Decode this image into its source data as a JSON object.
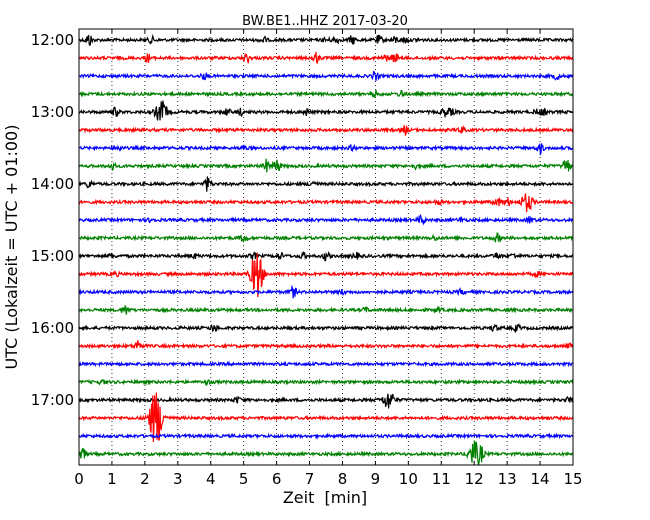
{
  "chart_data": {
    "type": "line",
    "title": "BW.BE1..HHZ 2017-03-20",
    "xlabel": "Zeit  [min]",
    "ylabel": "UTC (Lokalzeit = UTC + 01:00)",
    "xlim": [
      0,
      15
    ],
    "x_ticks": [
      0,
      1,
      2,
      3,
      4,
      5,
      6,
      7,
      8,
      9,
      10,
      11,
      12,
      13,
      14,
      15
    ],
    "y_tick_labels": [
      "12:00",
      "13:00",
      "14:00",
      "15:00",
      "16:00",
      "17:00"
    ],
    "y_tick_rows": [
      0,
      4,
      8,
      12,
      16,
      20
    ],
    "grid": "x-dotted",
    "row_colors": [
      "#000000",
      "#ff0000",
      "#0000ff",
      "#008000"
    ],
    "traces": [
      {
        "time": "12:00",
        "events": [
          [
            0.3,
            6
          ],
          [
            2.2,
            3
          ],
          [
            5.6,
            3
          ],
          [
            7.5,
            2
          ],
          [
            7.8,
            3
          ],
          [
            8.3,
            4
          ],
          [
            9.1,
            4
          ],
          [
            9.6,
            3
          ],
          [
            9.9,
            3
          ],
          [
            10.3,
            2
          ]
        ]
      },
      {
        "time": "12:15",
        "events": [
          [
            2.1,
            4
          ],
          [
            5.1,
            5
          ],
          [
            7.2,
            5
          ],
          [
            9.3,
            3
          ],
          [
            9.6,
            4
          ]
        ]
      },
      {
        "time": "12:30",
        "events": [
          [
            3.8,
            3
          ],
          [
            9.0,
            4
          ],
          [
            14.5,
            3
          ]
        ]
      },
      {
        "time": "12:45",
        "events": [
          [
            9.0,
            3
          ],
          [
            9.8,
            3
          ]
        ]
      },
      {
        "time": "13:00",
        "events": [
          [
            1.1,
            4
          ],
          [
            2.5,
            11
          ],
          [
            4.5,
            3
          ],
          [
            4.9,
            3
          ],
          [
            6.9,
            3
          ],
          [
            11.1,
            4
          ],
          [
            11.3,
            3
          ],
          [
            13.9,
            2
          ],
          [
            14.1,
            3
          ]
        ]
      },
      {
        "time": "13:15",
        "events": [
          [
            9.9,
            4
          ],
          [
            11.6,
            3
          ]
        ]
      },
      {
        "time": "13:30",
        "events": [
          [
            1.2,
            2
          ],
          [
            5.0,
            2
          ],
          [
            8.3,
            2
          ],
          [
            14.0,
            5
          ]
        ]
      },
      {
        "time": "13:45",
        "events": [
          [
            1.0,
            3
          ],
          [
            5.7,
            6
          ],
          [
            6.0,
            7
          ],
          [
            10.2,
            2
          ],
          [
            14.8,
            8
          ]
        ]
      },
      {
        "time": "14:00",
        "events": [
          [
            0.3,
            3
          ],
          [
            3.9,
            7
          ],
          [
            7.1,
            3
          ]
        ]
      },
      {
        "time": "14:15",
        "events": [
          [
            10.9,
            2
          ],
          [
            12.7,
            4
          ],
          [
            13.0,
            4
          ],
          [
            13.6,
            9
          ]
        ]
      },
      {
        "time": "14:30",
        "events": [
          [
            2.2,
            2
          ],
          [
            10.4,
            4
          ],
          [
            11.6,
            2
          ],
          [
            13.7,
            3
          ]
        ]
      },
      {
        "time": "14:45",
        "events": [
          [
            5.0,
            4
          ],
          [
            10.8,
            2
          ],
          [
            12.7,
            4
          ]
        ]
      },
      {
        "time": "15:00",
        "events": [
          [
            1.0,
            2
          ],
          [
            3.5,
            2
          ],
          [
            5.3,
            3
          ],
          [
            6.1,
            3
          ],
          [
            6.8,
            3
          ],
          [
            7.5,
            4
          ],
          [
            8.4,
            3
          ],
          [
            12.7,
            3
          ],
          [
            13.2,
            2
          ]
        ]
      },
      {
        "time": "15:15",
        "events": [
          [
            1.1,
            2
          ],
          [
            5.4,
            24
          ],
          [
            13.9,
            2
          ]
        ]
      },
      {
        "time": "15:30",
        "events": [
          [
            6.5,
            5
          ],
          [
            8.0,
            2
          ],
          [
            11.6,
            2
          ]
        ]
      },
      {
        "time": "15:45",
        "events": [
          [
            1.4,
            5
          ],
          [
            8.7,
            2
          ],
          [
            10.9,
            2
          ]
        ]
      },
      {
        "time": "16:00",
        "events": [
          [
            4.1,
            3
          ],
          [
            12.6,
            3
          ],
          [
            13.3,
            3
          ]
        ]
      },
      {
        "time": "16:15",
        "events": [
          [
            1.8,
            6
          ],
          [
            14.9,
            2
          ]
        ]
      },
      {
        "time": "16:30",
        "events": []
      },
      {
        "time": "16:45",
        "events": [
          [
            0.7,
            2
          ],
          [
            3.9,
            2
          ]
        ]
      },
      {
        "time": "17:00",
        "events": [
          [
            4.8,
            3
          ],
          [
            9.4,
            9
          ],
          [
            14.9,
            3
          ]
        ]
      },
      {
        "time": "17:15",
        "events": [
          [
            2.3,
            20
          ],
          [
            2.4,
            12
          ]
        ]
      },
      {
        "time": "17:30",
        "events": []
      },
      {
        "time": "17:45",
        "events": [
          [
            0.1,
            6
          ],
          [
            12.0,
            12
          ],
          [
            12.2,
            6
          ]
        ]
      }
    ]
  }
}
